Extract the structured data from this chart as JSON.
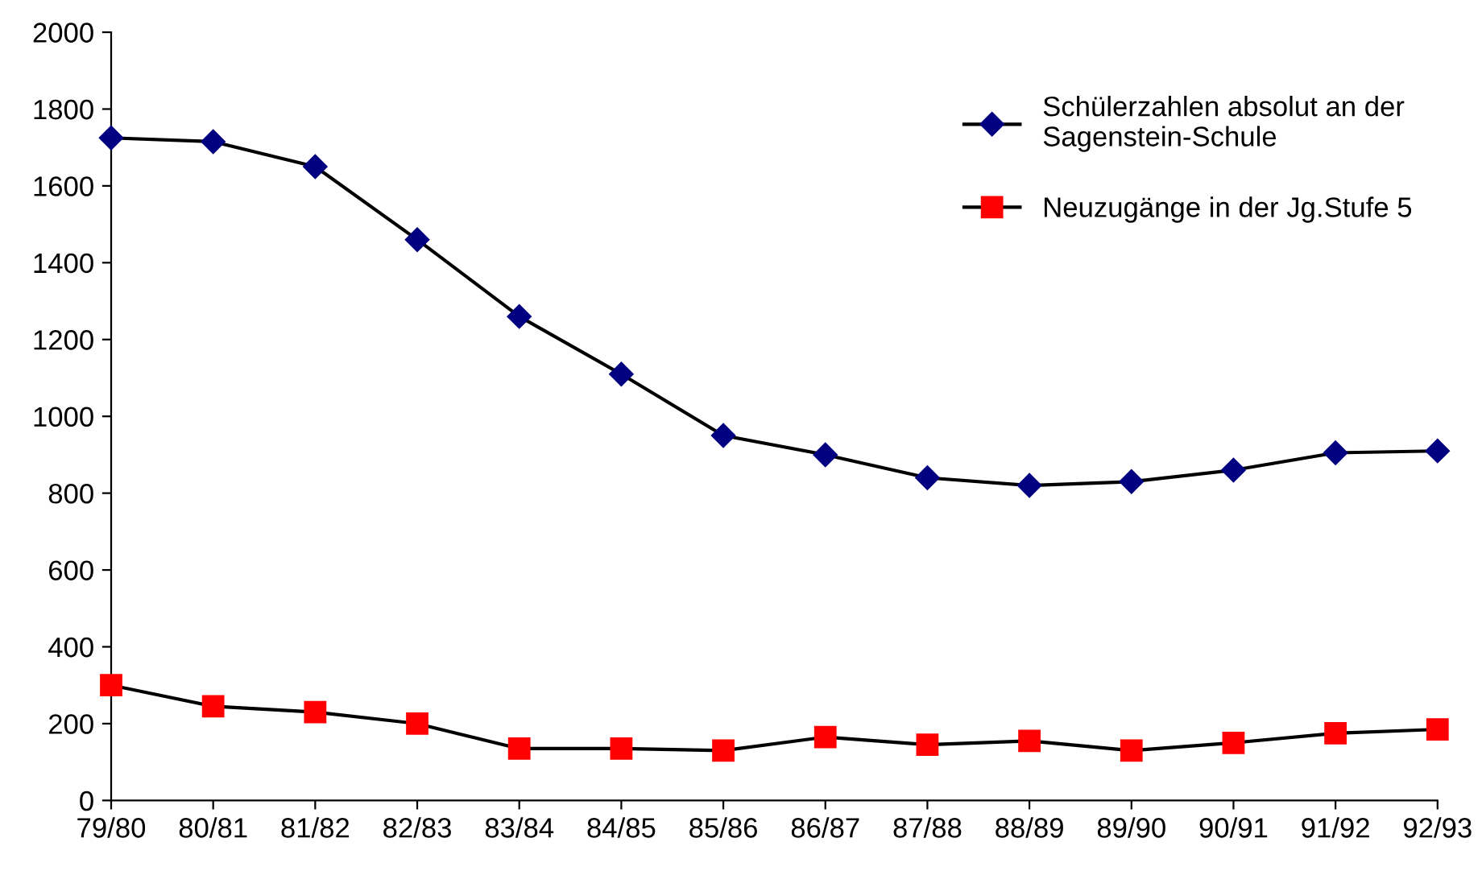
{
  "chart_data": {
    "type": "line",
    "categories": [
      "79/80",
      "80/81",
      "81/82",
      "82/83",
      "83/84",
      "84/85",
      "85/86",
      "86/87",
      "87/88",
      "88/89",
      "89/90",
      "90/91",
      "91/92",
      "92/93"
    ],
    "series": [
      {
        "name": "Schülerzahlen absolut an der\nSagenstein-Schule",
        "color": "#000080",
        "marker": "diamond",
        "values": [
          1725,
          1715,
          1650,
          1460,
          1260,
          1110,
          950,
          900,
          840,
          820,
          830,
          860,
          905,
          910
        ]
      },
      {
        "name": "Neuzugänge in der Jg.Stufe 5",
        "color": "#ff0000",
        "marker": "square",
        "values": [
          300,
          245,
          230,
          200,
          135,
          135,
          130,
          165,
          145,
          155,
          130,
          150,
          175,
          185
        ]
      }
    ],
    "ylim": [
      0,
      2000
    ],
    "yticks": [
      0,
      200,
      400,
      600,
      800,
      1000,
      1200,
      1400,
      1600,
      1800,
      2000
    ],
    "grid": false,
    "legend": "top right",
    "line_style": "solid"
  }
}
